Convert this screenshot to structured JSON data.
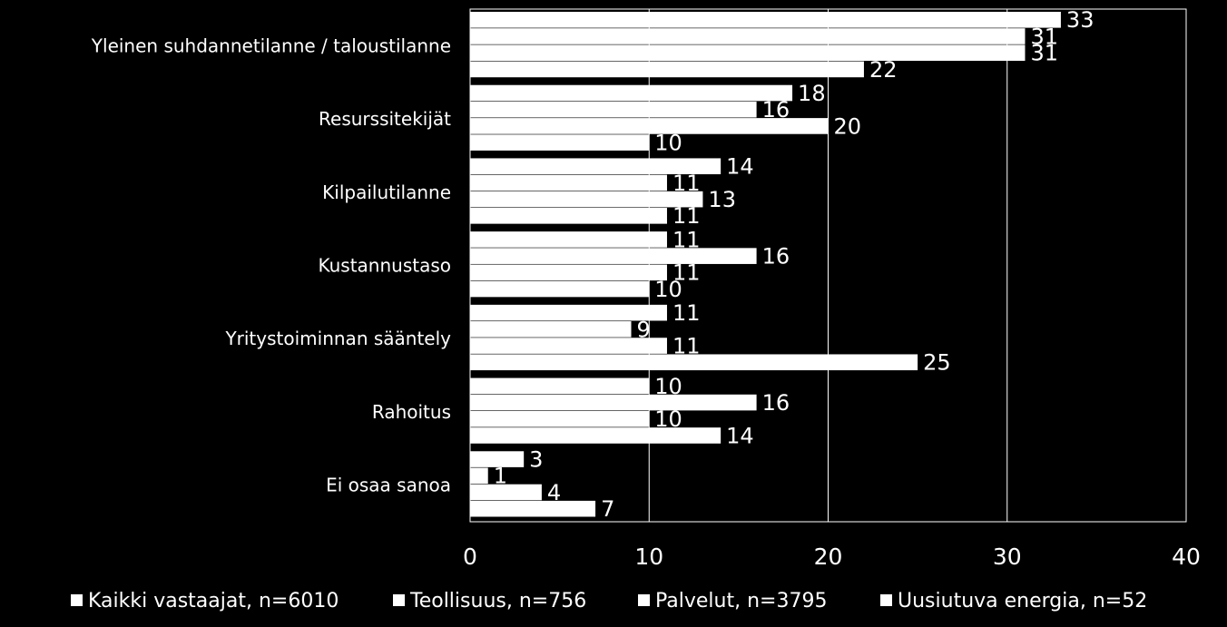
{
  "chart_data": {
    "type": "bar",
    "orientation": "horizontal",
    "categories": [
      "Yleinen suhdannetilanne / taloustilanne",
      "Resurssitekijät",
      "Kilpailutilanne",
      "Kustannustaso",
      "Yritystoiminnan sääntely",
      "Rahoitus",
      "Ei osaa sanoa"
    ],
    "series": [
      {
        "name": "Kaikki vastaajat, n=6010",
        "values": [
          33,
          18,
          14,
          11,
          11,
          10,
          3
        ],
        "labels": [
          "33",
          "18",
          "14",
          "11",
          "11",
          "10",
          "3"
        ],
        "color": "#ffffff"
      },
      {
        "name": "Teollisuus, n=756",
        "values": [
          31,
          16,
          11,
          16,
          9,
          16,
          1
        ],
        "labels": [
          "31",
          "16",
          "11",
          "16",
          "9",
          "16",
          "1"
        ],
        "color": "#ffffff"
      },
      {
        "name": "Palvelut, n=3795",
        "values": [
          31,
          20,
          13,
          11,
          11,
          10,
          4
        ],
        "labels": [
          "31",
          "20",
          "13",
          "11",
          "11",
          "10",
          "4"
        ],
        "color": "#ffffff"
      },
      {
        "name": "Uusiutuva energia, n=52",
        "values": [
          22,
          10,
          11,
          10,
          25,
          14,
          7
        ],
        "labels": [
          "22",
          "10",
          "11",
          "10",
          "25",
          "14",
          "7"
        ],
        "color": "#ffffff"
      }
    ],
    "xlim": [
      0,
      40
    ],
    "xticks": [
      "0",
      "10",
      "20",
      "30",
      "40"
    ],
    "grid": true,
    "legend_position": "bottom",
    "background": "#000000"
  }
}
